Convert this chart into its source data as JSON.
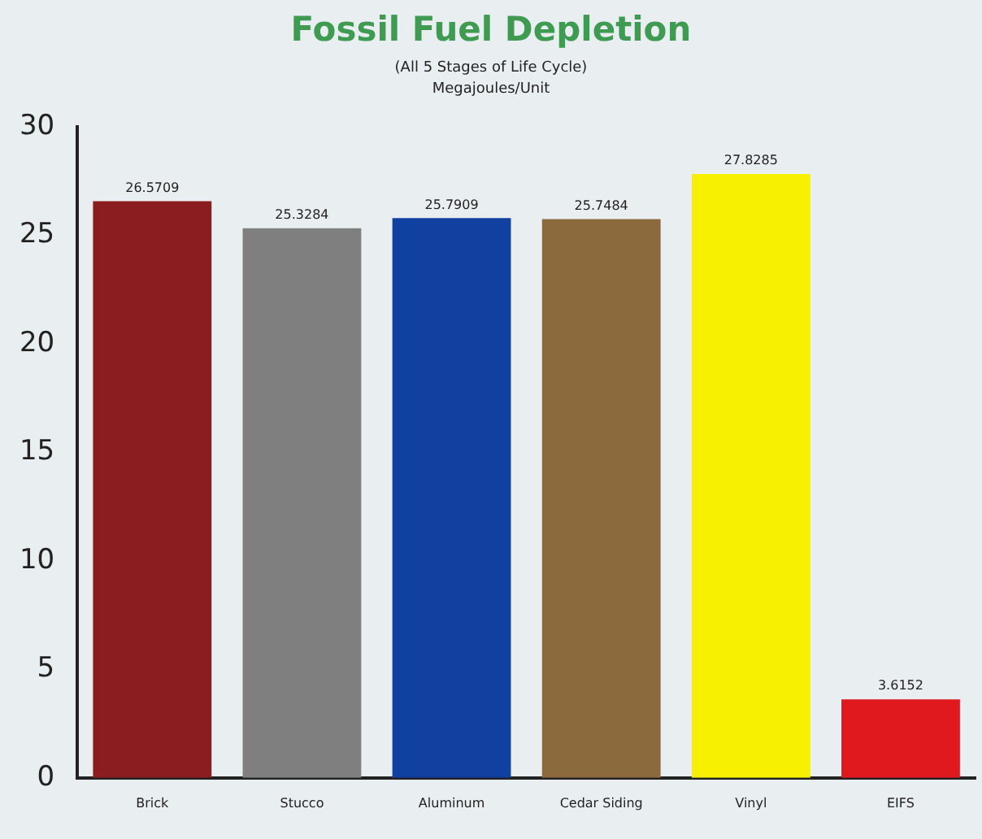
{
  "chart_data": {
    "type": "bar",
    "title": "Fossil Fuel Depletion",
    "subtitle": "(All 5 Stages of Life Cycle)\nMegajoules/Unit",
    "categories": [
      "Brick",
      "Stucco",
      "Aluminum",
      "Cedar Siding",
      "Vinyl",
      "EIFS"
    ],
    "values": [
      26.5709,
      25.3284,
      25.7909,
      25.7484,
      27.8285,
      3.6152
    ],
    "colors": [
      "#8b1c1f",
      "#7f7f7f",
      "#1040a0",
      "#8b6a3e",
      "#f7f000",
      "#e0191e"
    ],
    "ylim": [
      0,
      30
    ],
    "yticks": [
      0,
      5,
      10,
      15,
      20,
      25,
      30
    ],
    "grid": false,
    "data_labels": true
  }
}
